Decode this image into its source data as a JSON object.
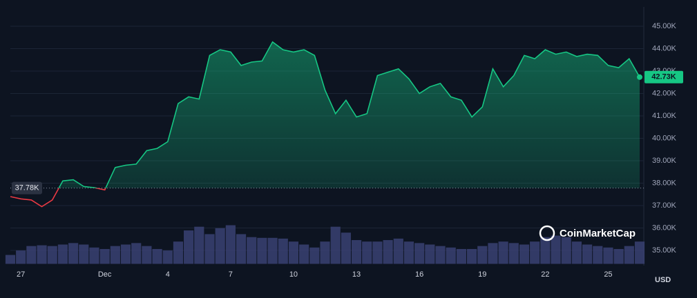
{
  "chart_data": {
    "type": "line",
    "watermark": "CoinMarketCap",
    "currency": "USD",
    "categories": [
      null,
      "27",
      null,
      null,
      null,
      null,
      null,
      null,
      null,
      "Dec",
      null,
      null,
      null,
      null,
      null,
      "4",
      null,
      null,
      null,
      null,
      null,
      "7",
      null,
      null,
      null,
      null,
      null,
      "10",
      null,
      null,
      null,
      null,
      null,
      "13",
      null,
      null,
      null,
      null,
      null,
      "16",
      null,
      null,
      null,
      null,
      null,
      "19",
      null,
      null,
      null,
      null,
      null,
      "22",
      null,
      null,
      null,
      null,
      null,
      "25",
      null,
      null,
      null
    ],
    "series": [
      {
        "name": "Price",
        "color": "#16c784",
        "below_color": "#ea3943",
        "values": [
          37400,
          37300,
          37250,
          36950,
          37250,
          38100,
          38150,
          37850,
          37800,
          37700,
          38700,
          38800,
          38850,
          39450,
          39550,
          39850,
          41550,
          41850,
          41750,
          43700,
          43950,
          43850,
          43250,
          43400,
          43450,
          44300,
          43950,
          43850,
          43950,
          43700,
          42150,
          41100,
          41700,
          40950,
          41100,
          42800,
          42950,
          43100,
          42650,
          42000,
          42300,
          42450,
          41850,
          41700,
          40950,
          41400,
          43100,
          42300,
          42800,
          43700,
          43550,
          43950,
          43750,
          43850,
          43650,
          43750,
          43700,
          43250,
          43150,
          43550,
          42730
        ]
      },
      {
        "name": "Volume",
        "color": "#3a4172",
        "values": [
          12,
          18,
          24,
          25,
          24,
          26,
          28,
          26,
          22,
          20,
          24,
          26,
          28,
          24,
          20,
          18,
          30,
          45,
          50,
          40,
          48,
          52,
          40,
          36,
          35,
          35,
          34,
          30,
          26,
          22,
          30,
          50,
          42,
          32,
          30,
          30,
          32,
          34,
          30,
          28,
          26,
          24,
          22,
          20,
          20,
          24,
          28,
          30,
          28,
          26,
          30,
          36,
          38,
          36,
          30,
          26,
          24,
          22,
          20,
          24,
          30
        ]
      }
    ],
    "baseline": {
      "value": 37780,
      "label": "37.78K"
    },
    "last_price": {
      "value": 42730,
      "label": "42.73K"
    },
    "ylim": [
      34400,
      45700
    ],
    "yticks": [
      {
        "value": 35000,
        "label": "35.00K"
      },
      {
        "value": 36000,
        "label": "36.00K"
      },
      {
        "value": 37000,
        "label": "37.00K"
      },
      {
        "value": 38000,
        "label": "38.00K"
      },
      {
        "value": 39000,
        "label": "39.00K"
      },
      {
        "value": 40000,
        "label": "40.00K"
      },
      {
        "value": 41000,
        "label": "41.00K"
      },
      {
        "value": 42000,
        "label": "42.00K"
      },
      {
        "value": 43000,
        "label": "43.00K"
      },
      {
        "value": 44000,
        "label": "44.00K"
      },
      {
        "value": 45000,
        "label": "45.00K"
      }
    ],
    "grid": true
  }
}
